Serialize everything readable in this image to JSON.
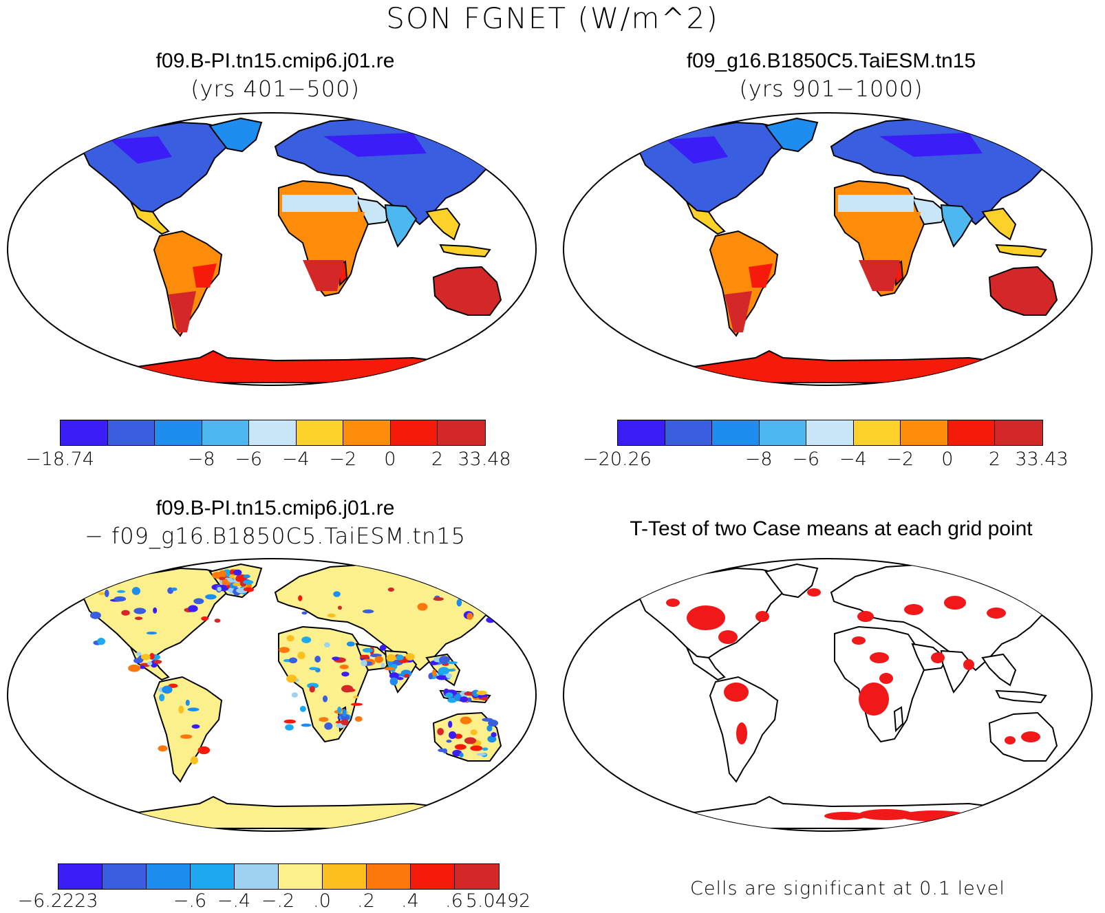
{
  "main_title": "SON FGNET (W/m^2)",
  "panels": {
    "p1": {
      "title": "f09.B-PI.tn15.cmip6.j01.re",
      "subtitle": "(yrs 401−500)",
      "colorbar": [
        "−18.74",
        "−8",
        "−6",
        "−4",
        "−2",
        "0",
        "2",
        "33.48"
      ]
    },
    "p2": {
      "title": "f09_g16.B1850C5.TaiESM.tn15",
      "subtitle": "(yrs 901−1000)",
      "colorbar": [
        "−20.26",
        "−8",
        "−6",
        "−4",
        "−2",
        "0",
        "2",
        "33.43"
      ]
    },
    "p3": {
      "title": "f09.B-PI.tn15.cmip6.j01.re",
      "subtitle": "− f09_g16.B1850C5.TaiESM.tn15",
      "colorbar": [
        "−6.2223",
        "−.6",
        "−.4",
        "−.2",
        ".0",
        ".2",
        ".4",
        ".6",
        "5.0492"
      ]
    },
    "p4": {
      "title": "T-Test of two Case means at each grid point",
      "note": "Cells are significant at 0.1 level"
    }
  },
  "colors": {
    "abs_scale": [
      "#3a1ef5",
      "#3a5ee0",
      "#1e8df0",
      "#4db8f0",
      "#c8e6f8",
      "#fcd22a",
      "#fc8c0a",
      "#f51a0a",
      "#d42828"
    ],
    "diff_scale": [
      "#3a1ef5",
      "#3a5ee0",
      "#1e8df0",
      "#1ea8f0",
      "#9ed2f0",
      "#fcf08c",
      "#fcc01e",
      "#fc780a",
      "#f51a0a",
      "#d42828"
    ],
    "significant": "#f01818"
  }
}
